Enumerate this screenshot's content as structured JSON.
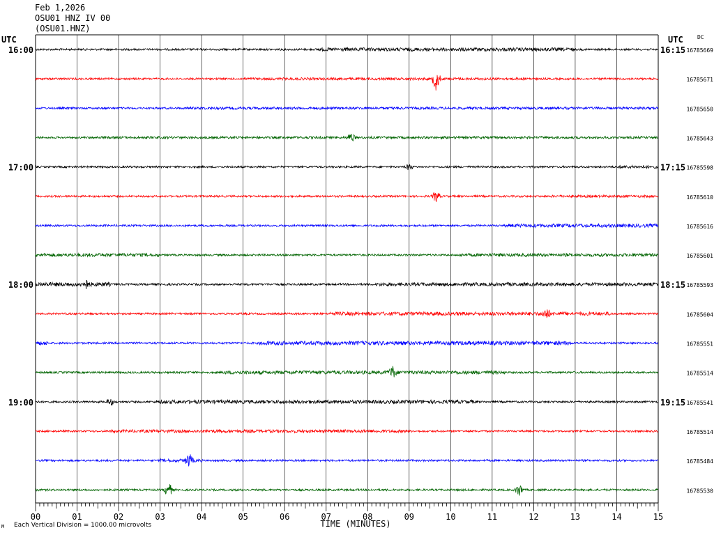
{
  "header": {
    "date": "Feb 1,2026",
    "station": "OSU01 HNZ IV 00",
    "code": "(OSU01.HNZ)"
  },
  "labels": {
    "utc_left": "UTC",
    "utc_right": "UTC",
    "dc": "DC",
    "footnote": "Each Vertical Division = 1000.00 microvolts",
    "corner": "M"
  },
  "colors": {
    "series": [
      "#000000",
      "#ff0000",
      "#0000ff",
      "#006400"
    ],
    "grid": "#000000"
  },
  "chart_data": {
    "type": "line",
    "xlabel": "TIME (MINUTES)",
    "xlim": [
      0,
      15
    ],
    "x_ticks": [
      "00",
      "01",
      "02",
      "03",
      "04",
      "05",
      "06",
      "07",
      "08",
      "09",
      "10",
      "11",
      "12",
      "13",
      "14",
      "15"
    ],
    "grid": true,
    "traces": [
      {
        "row": 0,
        "color_index": 0,
        "left_time": "16:00",
        "right_time": "16:15",
        "dc": "16785669",
        "bursts": [
          [
            6.8,
            13,
            2.5
          ]
        ],
        "events": []
      },
      {
        "row": 1,
        "color_index": 1,
        "left_time": "",
        "right_time": "",
        "dc": "16785671",
        "bursts": [
          [
            5.0,
            12,
            1.8
          ]
        ],
        "events": [
          [
            9.65,
            16
          ]
        ]
      },
      {
        "row": 2,
        "color_index": 2,
        "left_time": "",
        "right_time": "",
        "dc": "16785650",
        "bursts": [
          [
            3.6,
            15,
            1.8
          ]
        ],
        "events": []
      },
      {
        "row": 3,
        "color_index": 3,
        "left_time": "",
        "right_time": "",
        "dc": "16785643",
        "bursts": [
          [
            1.4,
            15,
            1.7
          ]
        ],
        "events": [
          [
            7.6,
            6
          ]
        ]
      },
      {
        "row": 4,
        "color_index": 0,
        "left_time": "17:00",
        "right_time": "17:15",
        "dc": "16785598",
        "bursts": [
          [
            14.0,
            15,
            2.2
          ]
        ],
        "events": [
          [
            9.0,
            4
          ]
        ]
      },
      {
        "row": 5,
        "color_index": 1,
        "left_time": "",
        "right_time": "",
        "dc": "16785610",
        "bursts": [
          [
            12.4,
            15,
            1.8
          ]
        ],
        "events": [
          [
            9.65,
            8
          ]
        ]
      },
      {
        "row": 6,
        "color_index": 2,
        "left_time": "",
        "right_time": "",
        "dc": "16785616",
        "bursts": [
          [
            11.3,
            15,
            2.5
          ]
        ],
        "events": []
      },
      {
        "row": 7,
        "color_index": 3,
        "left_time": "",
        "right_time": "",
        "dc": "16785601",
        "bursts": [
          [
            0,
            3,
            2.5
          ],
          [
            10.2,
            15,
            2.3
          ]
        ],
        "events": []
      },
      {
        "row": 8,
        "color_index": 0,
        "left_time": "18:00",
        "right_time": "18:15",
        "dc": "16785593",
        "bursts": [
          [
            0,
            1.8,
            3.0
          ],
          [
            8.2,
            15,
            2.5
          ]
        ],
        "events": [
          [
            1.2,
            6
          ]
        ]
      },
      {
        "row": 9,
        "color_index": 1,
        "left_time": "",
        "right_time": "",
        "dc": "16785604",
        "bursts": [
          [
            7.1,
            13.9,
            2.6
          ]
        ],
        "events": [
          [
            12.3,
            7
          ]
        ]
      },
      {
        "row": 10,
        "color_index": 2,
        "left_time": "",
        "right_time": "",
        "dc": "16785551",
        "bursts": [
          [
            0,
            0.3,
            3.0
          ],
          [
            5.4,
            12.9,
            2.8
          ]
        ],
        "events": []
      },
      {
        "row": 11,
        "color_index": 3,
        "left_time": "",
        "right_time": "",
        "dc": "16785514",
        "bursts": [
          [
            4.5,
            11.3,
            2.6
          ]
        ],
        "events": [
          [
            8.6,
            8
          ]
        ]
      },
      {
        "row": 12,
        "color_index": 0,
        "left_time": "19:00",
        "right_time": "19:15",
        "dc": "16785541",
        "bursts": [
          [
            2.9,
            10.6,
            2.6
          ]
        ],
        "events": [
          [
            1.8,
            5
          ]
        ]
      },
      {
        "row": 13,
        "color_index": 1,
        "left_time": "",
        "right_time": "",
        "dc": "16785514",
        "bursts": [
          [
            1.8,
            9.0,
            2.2
          ]
        ],
        "events": []
      },
      {
        "row": 14,
        "color_index": 2,
        "left_time": "",
        "right_time": "",
        "dc": "16785484",
        "bursts": [
          [
            3.0,
            4.0,
            2.2
          ]
        ],
        "events": [
          [
            3.7,
            9
          ]
        ]
      },
      {
        "row": 15,
        "color_index": 3,
        "left_time": "",
        "right_time": "",
        "dc": "16785530",
        "bursts": [],
        "events": [
          [
            3.2,
            11
          ],
          [
            11.65,
            9
          ]
        ]
      }
    ]
  }
}
